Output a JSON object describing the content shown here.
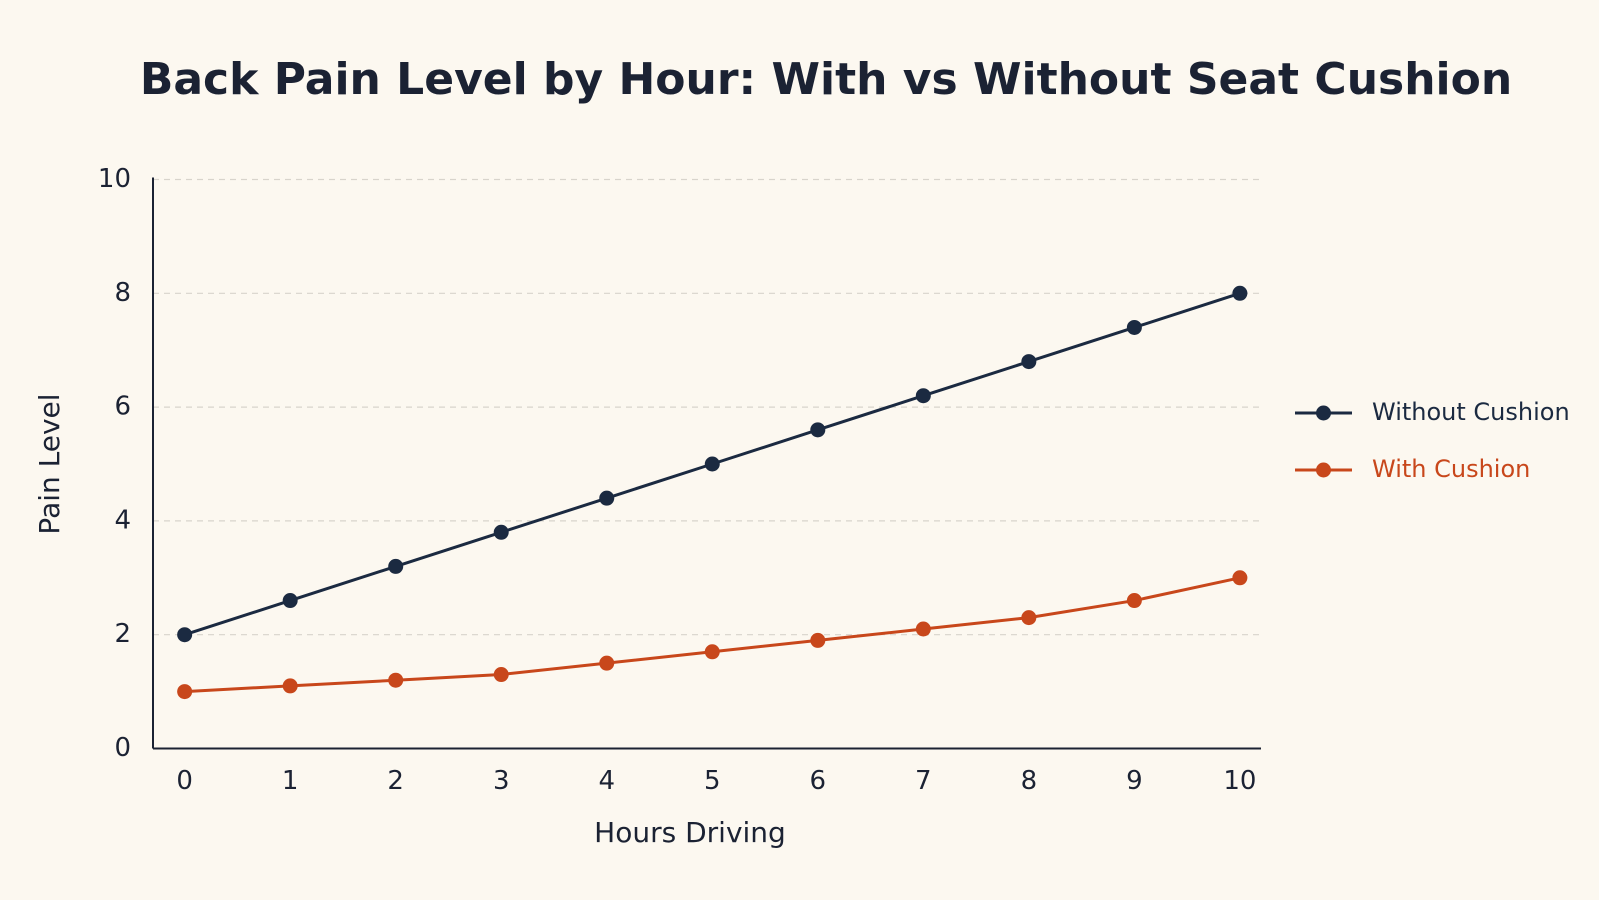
{
  "chart_data": {
    "type": "line",
    "title": "Back Pain Level by Hour: With vs Without Seat Cushion",
    "x_label": "Hours Driving",
    "y_label": "Pain Level",
    "x": [
      0,
      1,
      2,
      3,
      4,
      5,
      6,
      7,
      8,
      9,
      10
    ],
    "series": [
      {
        "name": "Without Cushion",
        "color": "#1b2a41",
        "values": [
          2,
          2.6,
          3.2,
          3.8,
          4.4,
          5,
          5.6,
          6.2,
          6.8,
          7.4,
          8
        ]
      },
      {
        "name": "With Cushion",
        "color": "#c8471b",
        "values": [
          1,
          1.1,
          1.2,
          1.3,
          1.5,
          1.7,
          1.9,
          2.1,
          2.3,
          2.6,
          3
        ]
      }
    ],
    "xlim": [
      -0.3,
      10.2
    ],
    "ylim": [
      0,
      10
    ],
    "xticks": [
      0,
      1,
      2,
      3,
      4,
      5,
      6,
      7,
      8,
      9,
      10
    ],
    "yticks": [
      0,
      2,
      4,
      6,
      8,
      10
    ],
    "grid": true,
    "legend": "right"
  }
}
